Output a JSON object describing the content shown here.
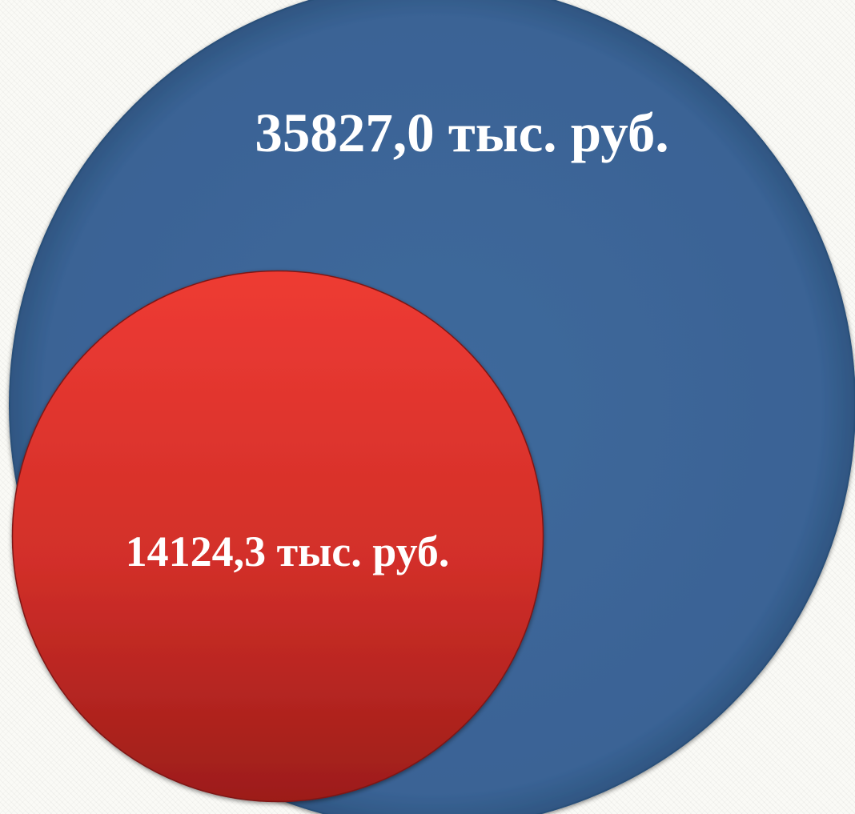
{
  "chart_data": {
    "type": "bubble",
    "series": [
      {
        "value": 35827.0,
        "label": "35827,0 тыс. руб.",
        "color": "#3c6598"
      },
      {
        "value": 14124.3,
        "label": "14124,3 тыс. руб.",
        "color": "#d7312b"
      }
    ]
  }
}
